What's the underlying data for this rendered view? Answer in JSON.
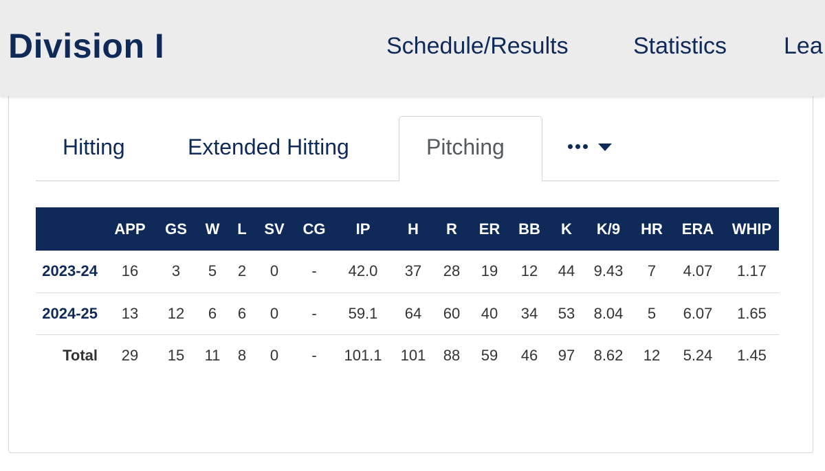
{
  "header": {
    "title": "Division I",
    "nav": {
      "schedule": "Schedule/Results",
      "statistics": "Statistics",
      "leaders": "Lea"
    }
  },
  "tabs": {
    "hitting": "Hitting",
    "extended_hitting": "Extended Hitting",
    "pitching": "Pitching",
    "more_icon": "ellipsis-caret-down"
  },
  "colors": {
    "primary_navy": "#0f2a59",
    "header_bg": "#ececec",
    "active_tab_text": "#555a60"
  },
  "table": {
    "columns": [
      "",
      "APP",
      "GS",
      "W",
      "L",
      "SV",
      "CG",
      "IP",
      "H",
      "R",
      "ER",
      "BB",
      "K",
      "K/9",
      "HR",
      "ERA",
      "WHIP"
    ],
    "rows": [
      {
        "label": "2023-24",
        "values": [
          "16",
          "3",
          "5",
          "2",
          "0",
          "-",
          "42.0",
          "37",
          "28",
          "19",
          "12",
          "44",
          "9.43",
          "7",
          "4.07",
          "1.17"
        ]
      },
      {
        "label": "2024-25",
        "values": [
          "13",
          "12",
          "6",
          "6",
          "0",
          "-",
          "59.1",
          "64",
          "60",
          "40",
          "34",
          "53",
          "8.04",
          "5",
          "6.07",
          "1.65"
        ]
      }
    ],
    "total": {
      "label": "Total",
      "values": [
        "29",
        "15",
        "11",
        "8",
        "0",
        "-",
        "101.1",
        "101",
        "88",
        "59",
        "46",
        "97",
        "8.62",
        "12",
        "5.24",
        "1.45"
      ]
    }
  }
}
